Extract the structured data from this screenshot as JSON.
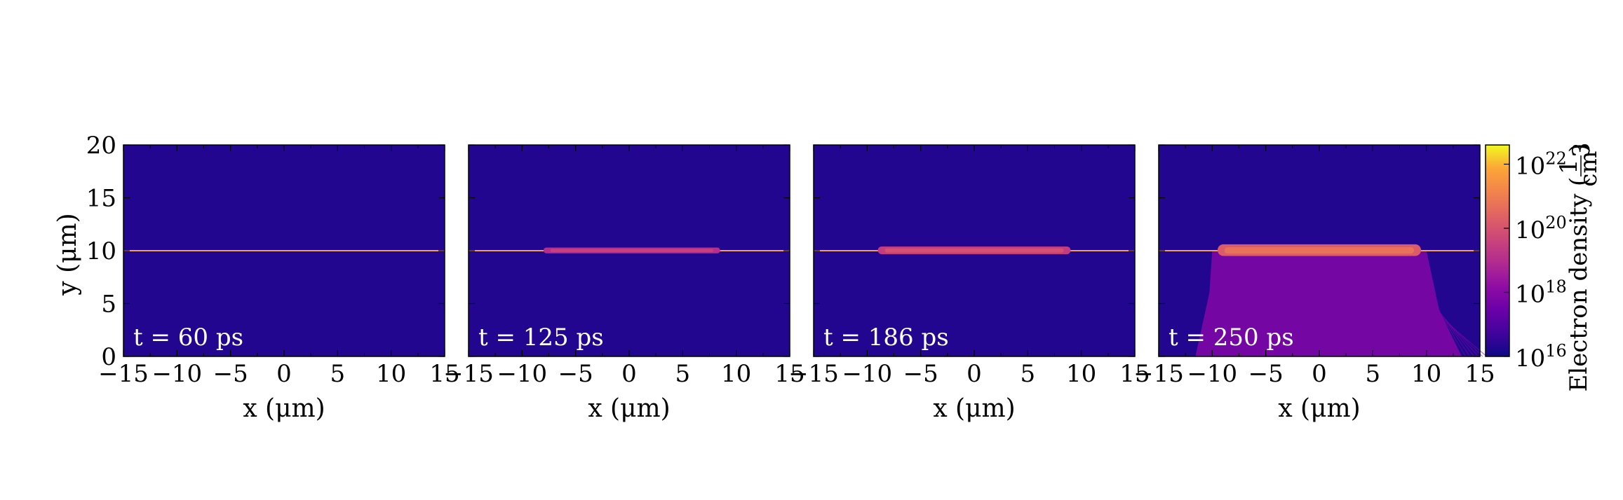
{
  "chart_data": {
    "type": "heatmap",
    "colormap": "plasma",
    "x_axis_label": "x  (μm)",
    "y_axis_label": "y  (μm)",
    "xlim": [
      -15,
      15
    ],
    "ylim": [
      0,
      20
    ],
    "x_ticks": [
      "−15",
      "−10",
      "−5",
      "0",
      "5",
      "10",
      "15"
    ],
    "x_tick_values": [
      -15,
      -10,
      -5,
      0,
      5,
      10,
      15
    ],
    "y_ticks": [
      "0",
      "5",
      "10",
      "15",
      "20"
    ],
    "y_tick_values": [
      0,
      5,
      10,
      15,
      20
    ],
    "background_log10_density": 16.3,
    "line_y": 10,
    "panels": [
      {
        "label": "t = 60 ps",
        "slab_x": null,
        "slab_log10_peak": null,
        "channel_x": null
      },
      {
        "label": "t = 125 ps",
        "slab_x": [
          -8,
          8.5
        ],
        "slab_log10_peak": 19.6,
        "channel_x": null
      },
      {
        "label": "t = 186 ps",
        "slab_x": [
          -9,
          9
        ],
        "slab_log10_peak": 20.0,
        "channel_x": null
      },
      {
        "label": "t = 250 ps",
        "slab_x": [
          -9.5,
          9.5
        ],
        "slab_log10_peak": 20.8,
        "channel_x": [
          -10,
          10
        ],
        "channel_log10_density": 17.8
      }
    ],
    "colorbar": {
      "label": "Electron density",
      "units_numerator": "1",
      "units_denominator": "cm",
      "units_exponent": "3",
      "tick_base": "10",
      "tick_exponents": [
        "16",
        "18",
        "20",
        "22"
      ],
      "log10_range": [
        16,
        22.6
      ]
    }
  }
}
